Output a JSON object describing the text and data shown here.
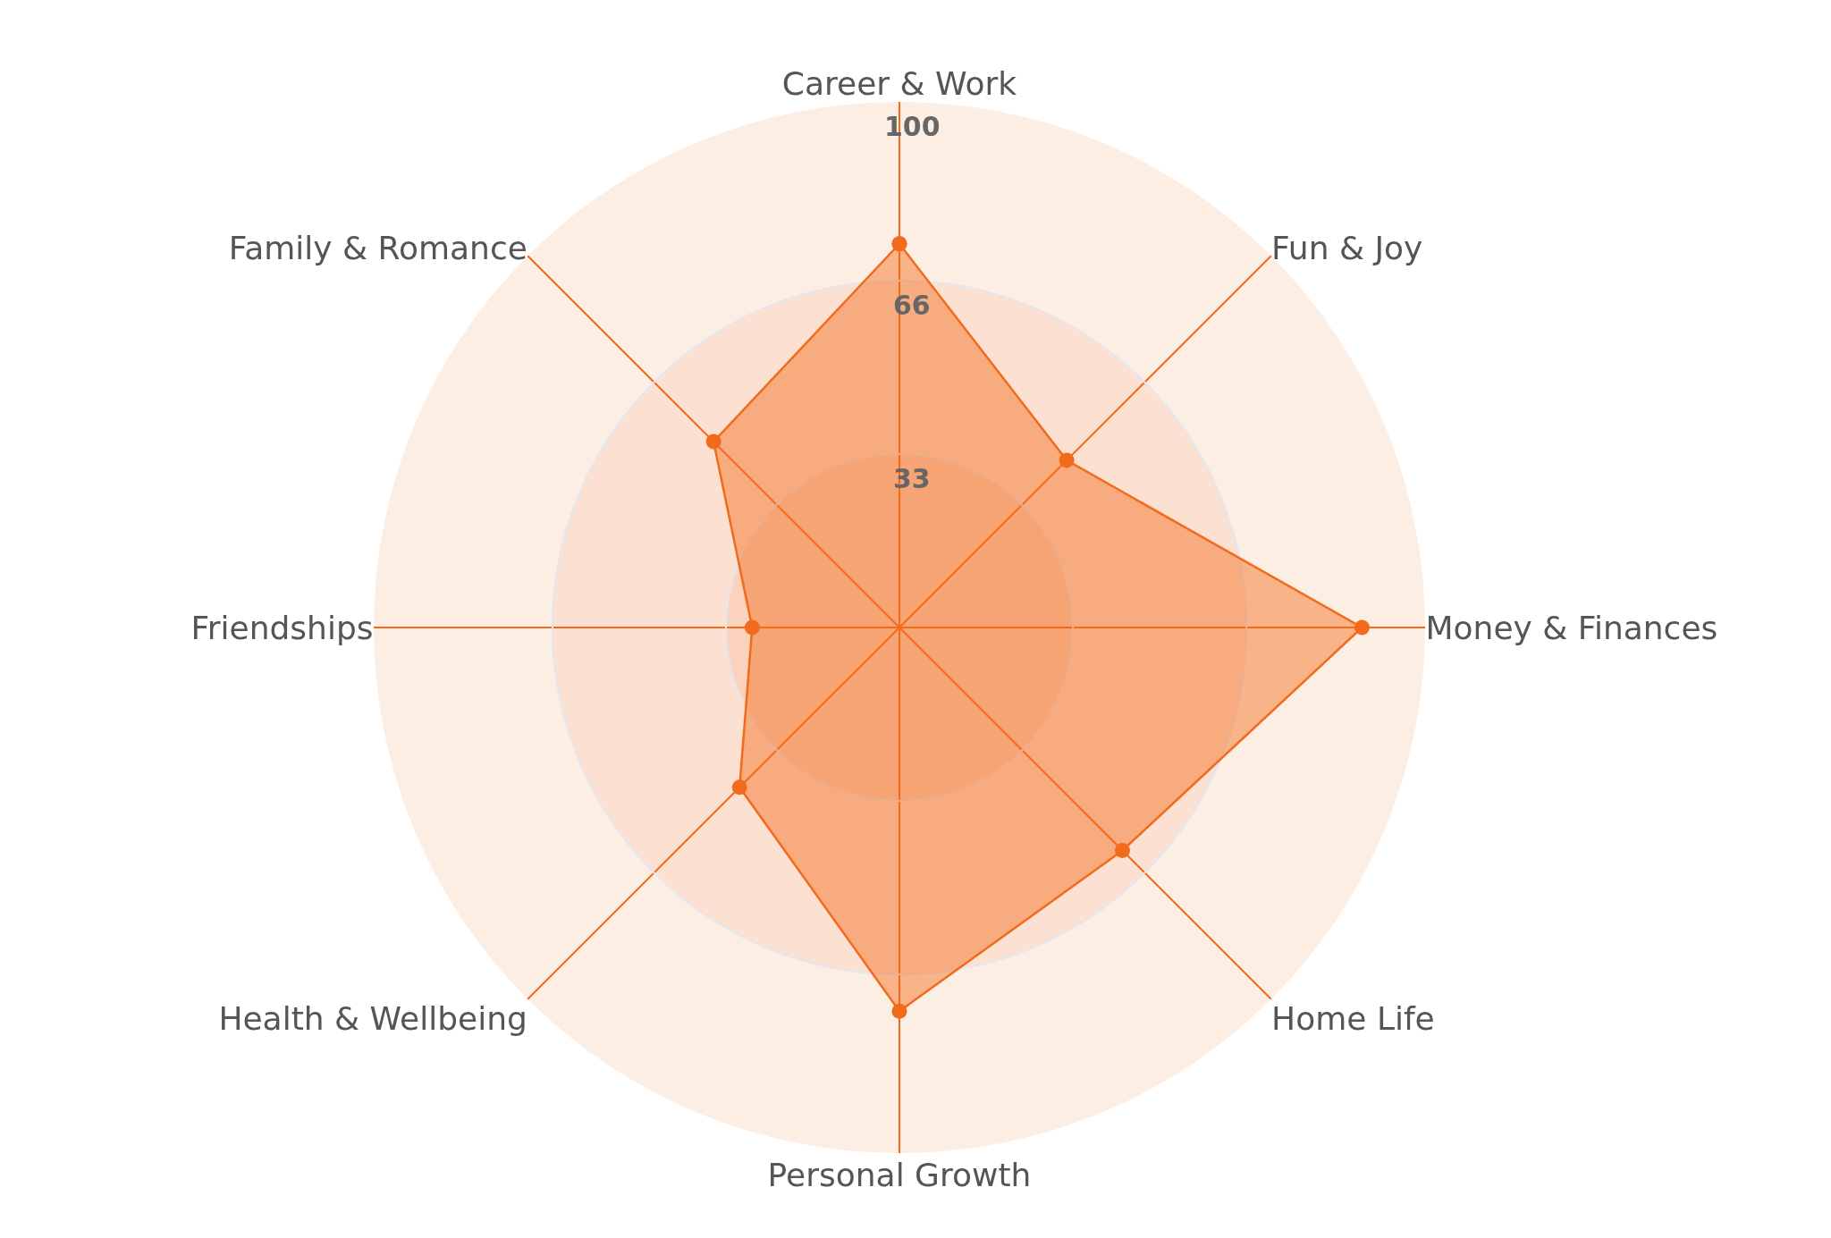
{
  "chart_data": {
    "type": "radar",
    "categories": [
      "Career & Work",
      "Fun & Joy",
      "Money & Finances",
      "Home Life",
      "Personal Growth",
      "Health & Wellbeing",
      "Friendships",
      "Family & Romance"
    ],
    "series": [
      {
        "color": "#f26a1b",
        "values": [
          73,
          45,
          88,
          60,
          73,
          43,
          28,
          50
        ]
      }
    ],
    "ylim": [
      0,
      100
    ],
    "yticks": [
      33,
      66,
      100
    ],
    "marker": "circle",
    "grid": true
  }
}
